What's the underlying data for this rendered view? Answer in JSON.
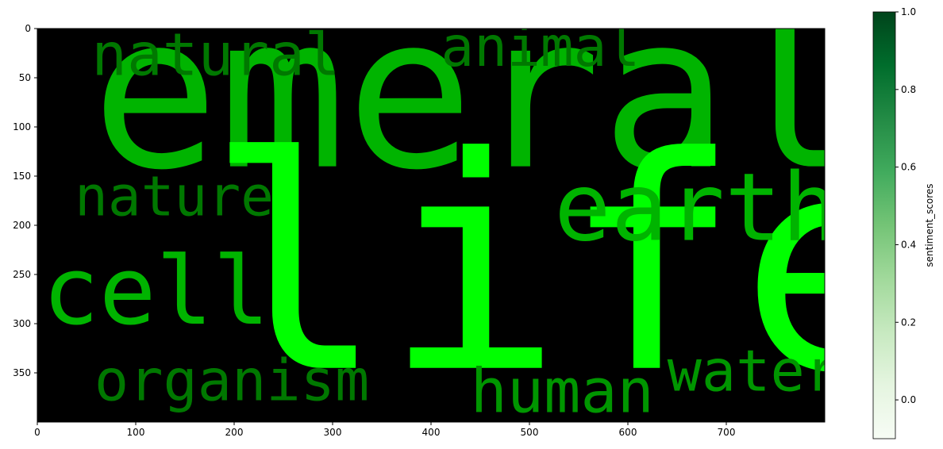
{
  "chart_data": [
    {
      "type": "wordcloud",
      "title": "",
      "xlabel": "",
      "ylabel": "",
      "xlim": [
        0,
        800
      ],
      "ylim": [
        400,
        0
      ],
      "xticks": [
        "0",
        "100",
        "200",
        "300",
        "400",
        "500",
        "600",
        "700"
      ],
      "yticks": [
        "0",
        "50",
        "100",
        "150",
        "200",
        "250",
        "300",
        "350"
      ],
      "background": "#000000",
      "words": [
        {
          "text": "emerald",
          "x": 55,
          "y": 140,
          "size": 215,
          "color": "#00b400"
        },
        {
          "text": "life",
          "x": 172,
          "y": 345,
          "size": 300,
          "color": "#00ff00"
        },
        {
          "text": "earth",
          "x": 525,
          "y": 215,
          "size": 96,
          "color": "#00b400"
        },
        {
          "text": "natural",
          "x": 55,
          "y": 47,
          "size": 60,
          "color": "#007800"
        },
        {
          "text": "animal",
          "x": 410,
          "y": 38,
          "size": 56,
          "color": "#007800"
        },
        {
          "text": "nature",
          "x": 38,
          "y": 190,
          "size": 56,
          "color": "#007800"
        },
        {
          "text": "cell",
          "x": 5,
          "y": 300,
          "size": 96,
          "color": "#00b400"
        },
        {
          "text": "organism",
          "x": 58,
          "y": 378,
          "size": 58,
          "color": "#007800"
        },
        {
          "text": "human",
          "x": 440,
          "y": 390,
          "size": 62,
          "color": "#009600"
        },
        {
          "text": "water",
          "x": 640,
          "y": 368,
          "size": 58,
          "color": "#009600"
        }
      ]
    },
    {
      "type": "colorbar",
      "label": "sentiment_scores",
      "range": [
        -0.1,
        1.0
      ],
      "ticks": [
        "0.0",
        "0.2",
        "0.4",
        "0.6",
        "0.8",
        "1.0"
      ],
      "colormap": [
        "#f7fcf5",
        "#e5f5e0",
        "#c7e9c0",
        "#a1d99b",
        "#74c476",
        "#41ab5d",
        "#238b45",
        "#006d2c",
        "#00441b"
      ]
    }
  ]
}
